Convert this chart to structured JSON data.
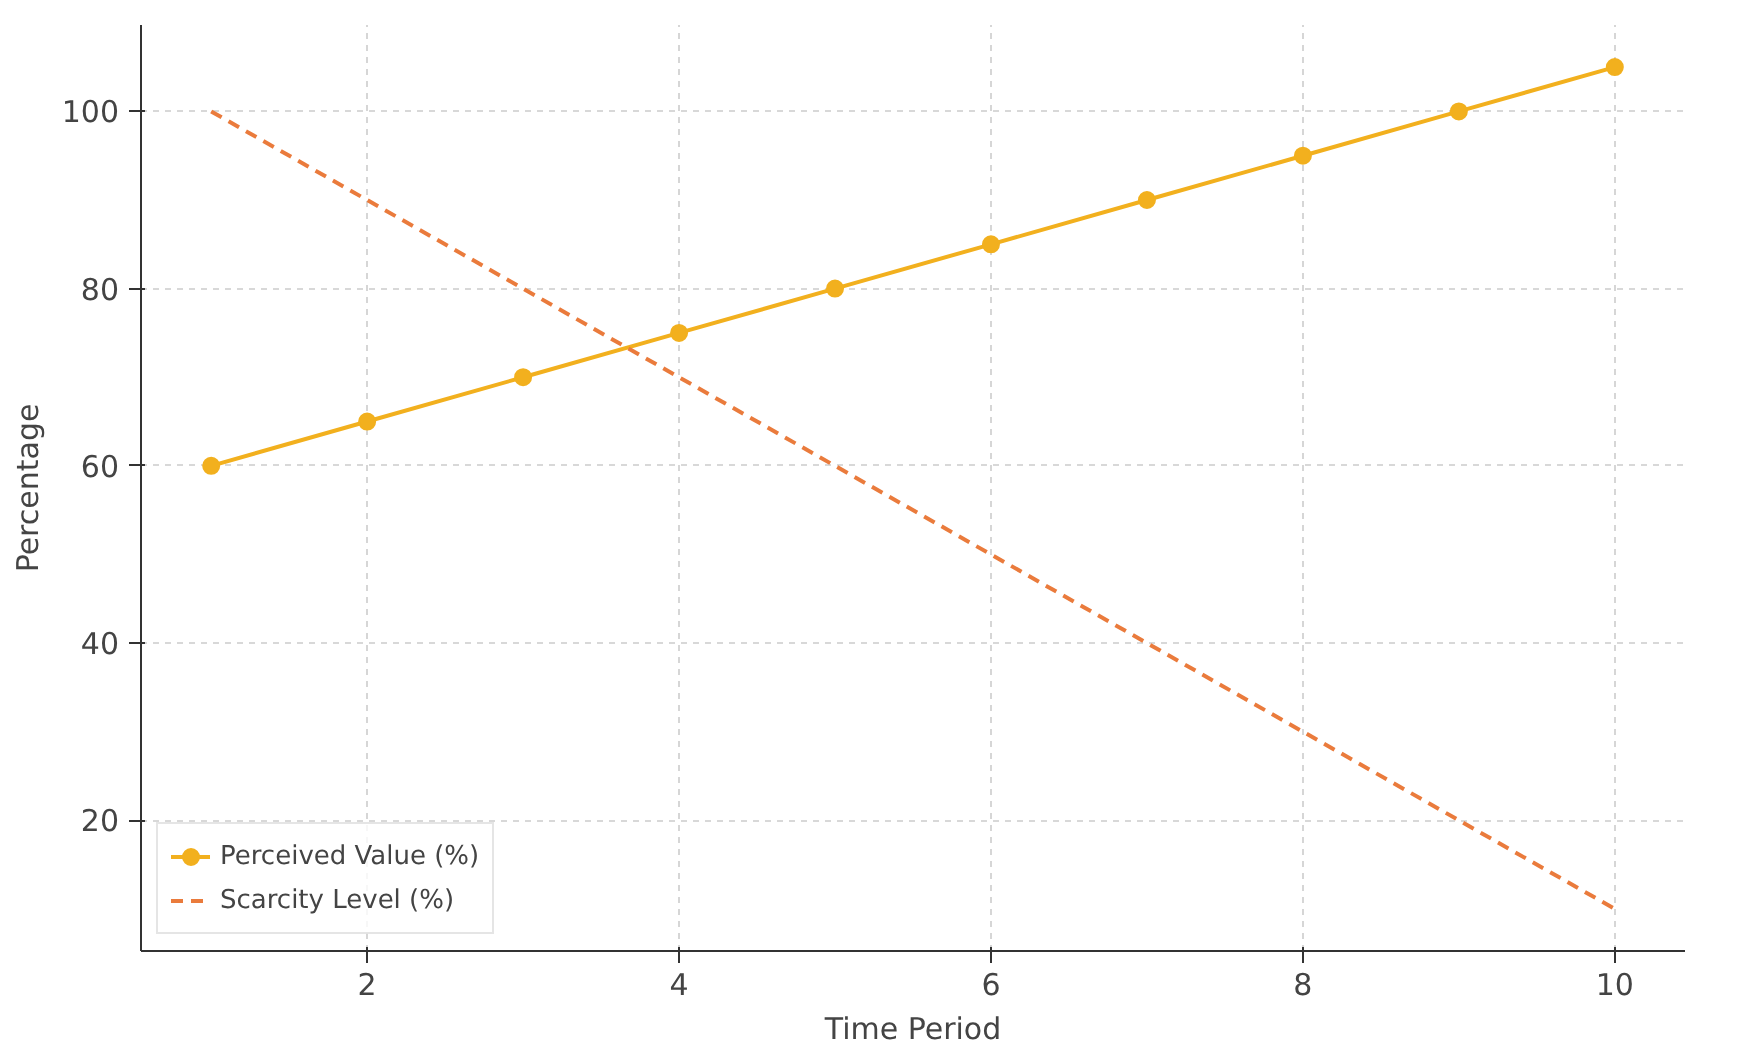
{
  "chart_data": {
    "type": "line",
    "xlabel": "Time Period",
    "ylabel": "Percentage",
    "x": [
      1,
      2,
      3,
      4,
      5,
      6,
      7,
      8,
      9,
      10
    ],
    "series": [
      {
        "name": "Perceived Value (%)",
        "color": "#f2b01e",
        "values": [
          60,
          65,
          70,
          75,
          80,
          85,
          90,
          95,
          100,
          105
        ],
        "marker": "circle",
        "line_style": "solid"
      },
      {
        "name": "Scarcity Level (%)",
        "color": "#ea7b3c",
        "values": [
          100,
          90,
          80,
          70,
          60,
          50,
          40,
          30,
          20,
          10
        ],
        "marker": "none",
        "line_style": "dashed"
      }
    ],
    "xlim": [
      0.55,
      10.45
    ],
    "ylim": [
      5.25,
      109.75
    ],
    "xticks": [
      2,
      4,
      6,
      8,
      10
    ],
    "yticks": [
      20,
      40,
      60,
      80,
      100
    ],
    "grid": true,
    "legend": "bottom left"
  }
}
